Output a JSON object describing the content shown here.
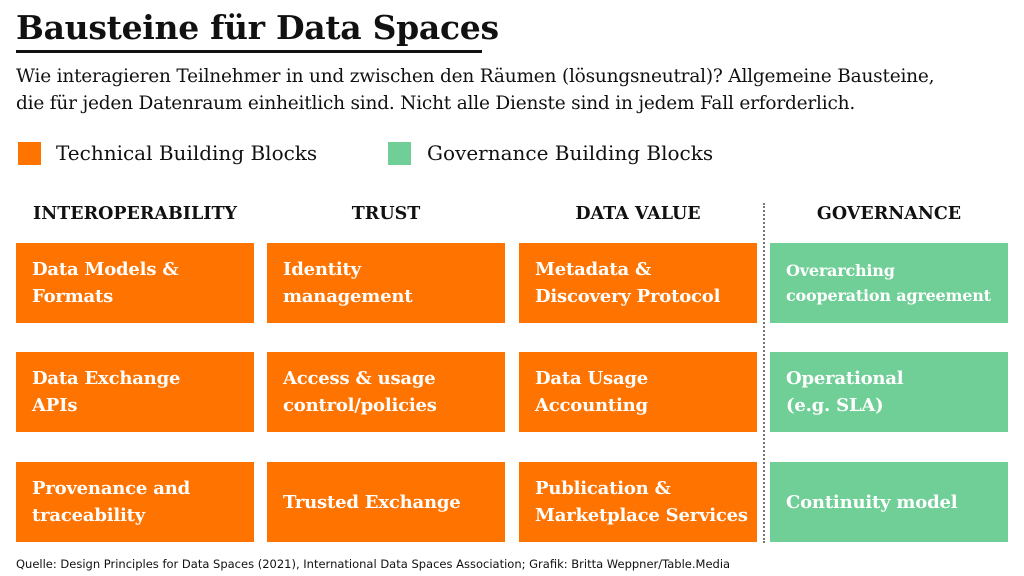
{
  "header": {
    "title": "Bausteine für Data Spaces",
    "subtitle": [
      "Wie interagieren Teilnehmer in und zwischen den Räumen (lösungsneutral)? Allgemeine Bausteine,",
      "die für jeden Datenraum einheitlich sind. Nicht alle Dienste sind in jedem Fall erforderlich."
    ]
  },
  "legend": [
    {
      "label": "Technical Building Blocks",
      "color": "#ff7300"
    },
    {
      "label": "Governance Building Blocks",
      "color": "#6fcf97"
    }
  ],
  "columns": [
    {
      "header": "INTEROPERABILITY",
      "kind": 0,
      "items": [
        [
          "Data Models &",
          "Formats"
        ],
        [
          "Data Exchange",
          "APIs"
        ],
        [
          "Provenance and",
          "traceability"
        ]
      ]
    },
    {
      "header": "TRUST",
      "kind": 0,
      "items": [
        [
          "Identity",
          "management"
        ],
        [
          "Access & usage",
          "control/policies"
        ],
        [
          "Trusted Exchange"
        ]
      ]
    },
    {
      "header": "DATA VALUE",
      "kind": 0,
      "items": [
        [
          "Metadata &",
          "Discovery Protocol"
        ],
        [
          "Data Usage",
          "Accounting"
        ],
        [
          "Publication &",
          "Marketplace Services"
        ]
      ]
    },
    {
      "header": "GOVERNANCE",
      "kind": 1,
      "items": [
        [
          "Overarching",
          "cooperation agreement"
        ],
        [
          "Operational",
          "(e.g. SLA)"
        ],
        [
          "Continuity model"
        ]
      ]
    }
  ],
  "source": "Quelle: Design Principles for Data Spaces (2021), International Data Spaces Association; Grafik: Britta Weppner/Table.Media"
}
